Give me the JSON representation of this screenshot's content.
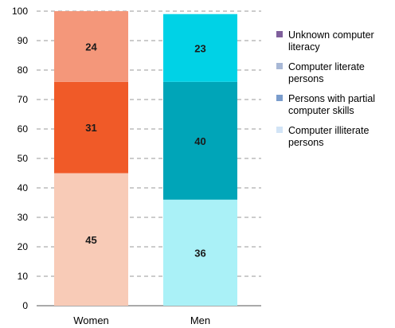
{
  "chart_data": {
    "type": "bar",
    "stacked": true,
    "categories": [
      "Women",
      "Men"
    ],
    "ylim": [
      0,
      100
    ],
    "yticks": [
      0,
      10,
      20,
      30,
      40,
      50,
      60,
      70,
      80,
      90,
      100
    ],
    "grid": true,
    "legend_position": "right",
    "bar_segments": [
      [
        {
          "value": 45,
          "color": "#f8cbb7"
        },
        {
          "value": 31,
          "color": "#f05a28"
        },
        {
          "value": 24,
          "color": "#f4977a"
        }
      ],
      [
        {
          "value": 36,
          "color": "#aaf1f7"
        },
        {
          "value": 40,
          "color": "#00a5b8"
        },
        {
          "value": 23,
          "color": "#00d2e6"
        }
      ]
    ],
    "legend": [
      {
        "lines": [
          "Unknown computer",
          "literacy"
        ],
        "color": "#7f5f9c"
      },
      {
        "lines": [
          "Computer literate",
          "persons"
        ],
        "color": "#a8b8d6"
      },
      {
        "lines": [
          "Persons with partial",
          "computer skills"
        ],
        "color": "#7a9ccc"
      },
      {
        "lines": [
          "Computer illiterate",
          "persons"
        ],
        "color": "#d2e4f6"
      }
    ]
  }
}
